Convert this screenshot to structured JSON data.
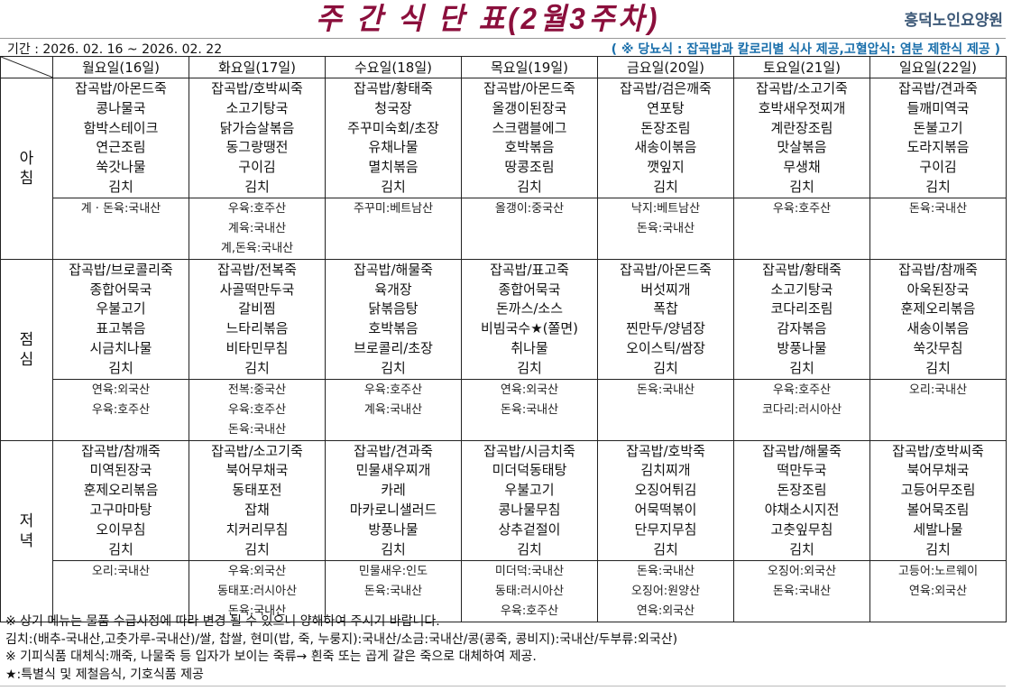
{
  "title": "주 간 식 단 표(2월3주차)",
  "organization": "흥덕노인요양원",
  "period": "기간 : 2026. 02. 16 ~ 2026.  02. 22",
  "diet_note": "( ※ 당뇨식 : 잡곡밥과 칼로리별 식사 제공,고혈압식: 염분 제한식 제공 )",
  "colors": {
    "title": "#8b0f3c",
    "organization": "#3c5877",
    "diet_note": "#1a6fab"
  },
  "days": [
    "월요일(16일)",
    "화요일(17일)",
    "수요일(18일)",
    "목요일(19일)",
    "금요일(20일)",
    "토요일(21일)",
    "일요일(22일)"
  ],
  "meals": [
    {
      "label": "아\n침",
      "menus": [
        [
          "잡곡밥/아몬드죽",
          "콩나물국",
          "함박스테이크",
          "연근조림",
          "쑥갓나물",
          "김치"
        ],
        [
          "잡곡밥/호박씨죽",
          "소고기탕국",
          "닭가슴살볶음",
          "동그랑땡전",
          "구이김",
          "김치"
        ],
        [
          "잡곡밥/황태죽",
          "청국장",
          "주꾸미숙회/초장",
          "유채나물",
          "멸치볶음",
          "김치"
        ],
        [
          "잡곡밥/아몬드죽",
          "올갱이된장국",
          "스크램블에그",
          "호박볶음",
          "땅콩조림",
          "김치"
        ],
        [
          "잡곡밥/검은깨죽",
          "연포탕",
          "돈장조림",
          "새송이볶음",
          "깻잎지",
          "김치"
        ],
        [
          "잡곡밥/소고기죽",
          "호박새우젓찌개",
          "계란장조림",
          "맛살볶음",
          "무생채",
          "김치"
        ],
        [
          "잡곡밥/견과죽",
          "들깨미역국",
          "돈불고기",
          "도라지볶음",
          "구이김",
          "김치"
        ]
      ],
      "origins": [
        [
          "계 · 돈육:국내산"
        ],
        [
          "우육:호주산",
          "계육:국내산",
          "계,돈육:국내산"
        ],
        [
          "주꾸미:베트남산"
        ],
        [
          "올갱이:중국산"
        ],
        [
          "낙지:베트남산",
          "돈육:국내산"
        ],
        [
          "우육:호주산"
        ],
        [
          "돈육:국내산"
        ]
      ]
    },
    {
      "label": "점\n심",
      "menus": [
        [
          "잡곡밥/브로콜리죽",
          "종합어묵국",
          "우불고기",
          "표고볶음",
          "시금치나물",
          "김치"
        ],
        [
          "잡곡밥/전복죽",
          "사골떡만두국",
          "갈비찜",
          "느타리볶음",
          "비타민무침",
          "김치"
        ],
        [
          "잡곡밥/해물죽",
          "육개장",
          "닭볶음탕",
          "호박볶음",
          "브로콜리/초장",
          "김치"
        ],
        [
          "잡곡밥/표고죽",
          "종합어묵국",
          "돈까스/소스",
          "비빔국수★(쫄면)",
          "취나물",
          "김치"
        ],
        [
          "잡곡밥/아몬드죽",
          "버섯찌개",
          "폭찹",
          "찐만두/양념장",
          "오이스틱/쌈장",
          "김치"
        ],
        [
          "잡곡밥/황태죽",
          "소고기탕국",
          "코다리조림",
          "감자볶음",
          "방풍나물",
          "김치"
        ],
        [
          "잡곡밥/참깨죽",
          "아욱된장국",
          "훈제오리볶음",
          "새송이볶음",
          "쑥갓무침",
          "김치"
        ]
      ],
      "origins": [
        [
          "연육:외국산",
          "우육:호주산"
        ],
        [
          "전복:중국산",
          "우육:호주산",
          "돈육:국내산"
        ],
        [
          "우육:호주산",
          "계육:국내산"
        ],
        [
          "연육:외국산",
          "돈육:국내산"
        ],
        [
          "돈육:국내산"
        ],
        [
          "우육:호주산",
          "코다리:러시아산"
        ],
        [
          "오리:국내산"
        ]
      ]
    },
    {
      "label": "저\n녁",
      "menus": [
        [
          "잡곡밥/참깨죽",
          "미역된장국",
          "훈제오리볶음",
          "고구마마탕",
          "오이무침",
          "김치"
        ],
        [
          "잡곡밥/소고기죽",
          "북어무채국",
          "동태포전",
          "잡채",
          "치커리무침",
          "김치"
        ],
        [
          "잡곡밥/견과죽",
          "민물새우찌개",
          "카레",
          "마카로니샐러드",
          "방풍나물",
          "김치"
        ],
        [
          "잡곡밥/시금치죽",
          "미더덕동태탕",
          "우불고기",
          "콩나물무침",
          "상추겉절이",
          "김치"
        ],
        [
          "잡곡밥/호박죽",
          "김치찌개",
          "오징어튀김",
          "어묵떡볶이",
          "단무지무침",
          "김치"
        ],
        [
          "잡곡밥/해물죽",
          "떡만두국",
          "돈장조림",
          "야채소시지전",
          "고춧잎무침",
          "김치"
        ],
        [
          "잡곡밥/호박씨죽",
          "북어무채국",
          "고등어무조림",
          "볼어묵조림",
          "세발나물",
          "김치"
        ]
      ],
      "origins": [
        [
          "오리:국내산"
        ],
        [
          "우육:외국산",
          "동태포:러시아산",
          "돈육:국내산"
        ],
        [
          "민물새우:인도",
          "돈육:국내산"
        ],
        [
          "미더덕:국내산",
          "동태:러시아산",
          "우육:호주산"
        ],
        [
          "돈육:국내산",
          "오징어:원양산",
          "연육:외국산"
        ],
        [
          "오징어:외국산",
          "돈육:국내산"
        ],
        [
          "고등어:노르웨이",
          "연육:외국산"
        ]
      ]
    }
  ],
  "notes": [
    "※ 상기 메뉴는 물품 수급사정에 따라 변경 될 수 있으니 양해하여 주시기 바랍니다.",
    "김치:(배추-국내산,고춧가루-국내산)/쌀, 찹쌀, 현미(밥, 죽, 누룽지):국내산/소금:국내산/콩(콩죽, 콩비지):국내산/두부류:외국산)",
    "※ 기피식품 대체식:깨죽, 나물죽 등 입자가 보이는 죽류→ 흰죽 또는 곱게 갈은 죽으로 대체하여 제공.",
    "★:특별식 및 제철음식, 기호식품 제공"
  ]
}
